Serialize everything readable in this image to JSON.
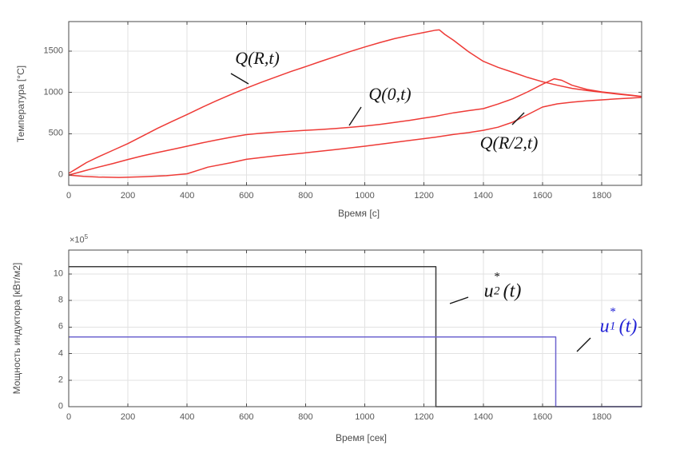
{
  "figure": {
    "background": "#ffffff",
    "axis_color": "#4a4a4a",
    "grid_color": "#e2e2e2",
    "tick_label_color": "#565656",
    "annotation_leader_color": "#141414"
  },
  "chart_data": [
    {
      "type": "line",
      "title": "",
      "xlabel": "Время [с]",
      "ylabel": "Температура [°C]",
      "xlim": [
        0,
        1935
      ],
      "ylim": [
        -125,
        1855
      ],
      "xticks": [
        0,
        200,
        400,
        600,
        800,
        1000,
        1200,
        1400,
        1600,
        1800
      ],
      "yticks": [
        0,
        500,
        1000,
        1500
      ],
      "grid": true,
      "line_color": "#ee3a36",
      "series": [
        {
          "name": "Q(R,t)",
          "color": "#ee3a36",
          "points": [
            [
              0,
              20
            ],
            [
              30,
              85
            ],
            [
              60,
              150
            ],
            [
              100,
              220
            ],
            [
              150,
              300
            ],
            [
              200,
              380
            ],
            [
              250,
              472
            ],
            [
              300,
              565
            ],
            [
              350,
              650
            ],
            [
              400,
              732
            ],
            [
              450,
              818
            ],
            [
              500,
              900
            ],
            [
              550,
              977
            ],
            [
              600,
              1050
            ],
            [
              650,
              1120
            ],
            [
              700,
              1186
            ],
            [
              750,
              1250
            ],
            [
              800,
              1310
            ],
            [
              850,
              1372
            ],
            [
              900,
              1432
            ],
            [
              950,
              1492
            ],
            [
              1000,
              1548
            ],
            [
              1050,
              1600
            ],
            [
              1100,
              1648
            ],
            [
              1150,
              1688
            ],
            [
              1200,
              1724
            ],
            [
              1240,
              1752
            ],
            [
              1252,
              1755
            ],
            [
              1270,
              1700
            ],
            [
              1300,
              1628
            ],
            [
              1350,
              1492
            ],
            [
              1400,
              1375
            ],
            [
              1450,
              1302
            ],
            [
              1500,
              1242
            ],
            [
              1550,
              1180
            ],
            [
              1600,
              1128
            ],
            [
              1650,
              1085
            ],
            [
              1700,
              1048
            ],
            [
              1750,
              1022
            ],
            [
              1800,
              1000
            ],
            [
              1850,
              980
            ],
            [
              1900,
              962
            ],
            [
              1935,
              950
            ]
          ]
        },
        {
          "name": "Q(0,t)",
          "color": "#ee3a36",
          "points": [
            [
              0,
              0
            ],
            [
              50,
              48
            ],
            [
              100,
              95
            ],
            [
              150,
              140
            ],
            [
              200,
              188
            ],
            [
              250,
              232
            ],
            [
              300,
              272
            ],
            [
              350,
              310
            ],
            [
              400,
              348
            ],
            [
              450,
              388
            ],
            [
              500,
              425
            ],
            [
              550,
              458
            ],
            [
              600,
              488
            ],
            [
              650,
              505
            ],
            [
              700,
              518
            ],
            [
              750,
              530
            ],
            [
              800,
              540
            ],
            [
              850,
              550
            ],
            [
              900,
              562
            ],
            [
              950,
              576
            ],
            [
              1000,
              592
            ],
            [
              1050,
              612
            ],
            [
              1100,
              636
            ],
            [
              1150,
              660
            ],
            [
              1200,
              688
            ],
            [
              1240,
              710
            ],
            [
              1265,
              728
            ],
            [
              1300,
              752
            ],
            [
              1350,
              778
            ],
            [
              1400,
              802
            ],
            [
              1450,
              858
            ],
            [
              1500,
              922
            ],
            [
              1550,
              1005
            ],
            [
              1600,
              1098
            ],
            [
              1640,
              1163
            ],
            [
              1665,
              1145
            ],
            [
              1700,
              1085
            ],
            [
              1750,
              1035
            ],
            [
              1800,
              1005
            ],
            [
              1850,
              985
            ],
            [
              1900,
              965
            ],
            [
              1935,
              950
            ]
          ]
        },
        {
          "name": "Q(R/2,t)",
          "color": "#ee3a36",
          "points": [
            [
              0,
              0
            ],
            [
              50,
              -16
            ],
            [
              100,
              -25
            ],
            [
              170,
              -29
            ],
            [
              250,
              -22
            ],
            [
              330,
              -8
            ],
            [
              400,
              15
            ],
            [
              470,
              95
            ],
            [
              550,
              150
            ],
            [
              600,
              190
            ],
            [
              700,
              232
            ],
            [
              800,
              268
            ],
            [
              900,
              308
            ],
            [
              1000,
              348
            ],
            [
              1100,
              395
            ],
            [
              1200,
              440
            ],
            [
              1240,
              458
            ],
            [
              1300,
              490
            ],
            [
              1350,
              512
            ],
            [
              1400,
              540
            ],
            [
              1450,
              578
            ],
            [
              1500,
              640
            ],
            [
              1550,
              730
            ],
            [
              1600,
              822
            ],
            [
              1650,
              860
            ],
            [
              1700,
              880
            ],
            [
              1750,
              896
            ],
            [
              1800,
              908
            ],
            [
              1850,
              920
            ],
            [
              1900,
              930
            ],
            [
              1935,
              938
            ]
          ]
        }
      ]
    },
    {
      "type": "line",
      "title": "",
      "xlabel": "Время [сек]",
      "ylabel": "Мощность индуктора [кВт/м2]",
      "y_multiplier": {
        "base": "×10",
        "exp": "5"
      },
      "xlim": [
        0,
        1935
      ],
      "ylim": [
        0,
        11.8
      ],
      "xticks": [
        0,
        200,
        400,
        600,
        800,
        1000,
        1200,
        1400,
        1600,
        1800
      ],
      "yticks": [
        0,
        2,
        4,
        6,
        8,
        10
      ],
      "grid": true,
      "series": [
        {
          "name": "u2*(t)",
          "color": "#3d3d3d",
          "label_parts": {
            "base": "u",
            "sub": "2",
            "sup": "*",
            "tail": "(t)"
          },
          "points": [
            [
              0,
              10.55
            ],
            [
              1240,
              10.55
            ],
            [
              1240,
              0
            ],
            [
              1935,
              0
            ]
          ]
        },
        {
          "name": "u1*(t)",
          "color": "#6e64cf",
          "label_color": "#2222d5",
          "label_parts": {
            "base": "u",
            "sub": "1",
            "sup": "*",
            "tail": "(t)"
          },
          "points": [
            [
              0,
              5.25
            ],
            [
              1645,
              5.25
            ],
            [
              1645,
              0
            ],
            [
              1935,
              0
            ]
          ]
        }
      ]
    }
  ]
}
